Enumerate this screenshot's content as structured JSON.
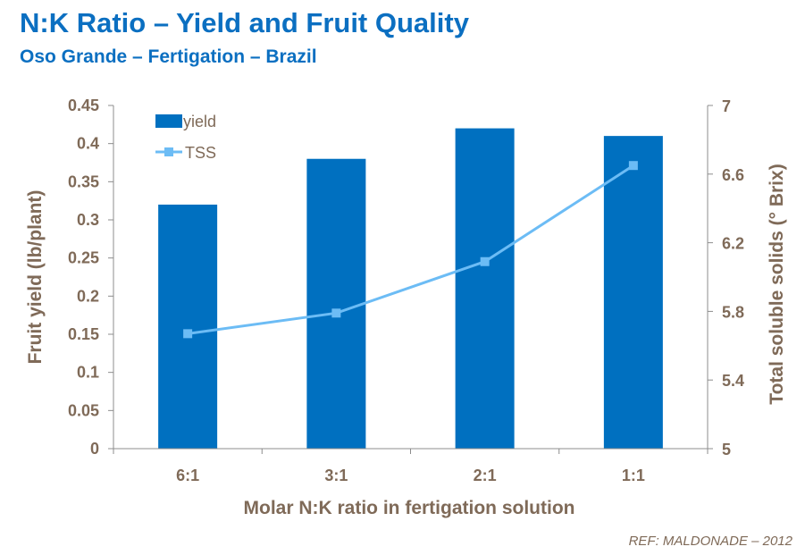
{
  "header": {
    "title": "N:K Ratio – Yield and Fruit Quality",
    "subtitle": "Oso Grande – Fertigation – Brazil"
  },
  "reference": "REF: MALDONADE – 2012",
  "colors": {
    "title": "#0b6fc1",
    "bar": "#0070c0",
    "line": "#6cbcf5",
    "axis_text": "#7f6a58",
    "axis_line": "#8c8c8c"
  },
  "chart_data": {
    "type": "bar",
    "categories": [
      "6:1",
      "3:1",
      "2:1",
      "1:1"
    ],
    "xlabel": "Molar N:K ratio in fertigation solution",
    "ylabel": "Fruit yield (lb/plant)",
    "y2label": "Total soluble solids (° Brix)",
    "ylim": [
      0,
      0.45
    ],
    "y2lim": [
      5,
      7
    ],
    "yticks": [
      "0",
      "0.05",
      "0.1",
      "0.15",
      "0.2",
      "0.25",
      "0.3",
      "0.35",
      "0.4",
      "0.45"
    ],
    "y2ticks": [
      "5",
      "5.4",
      "5.8",
      "6.2",
      "6.6",
      "7"
    ],
    "series": [
      {
        "name": "yield",
        "type": "bar",
        "axis": "left",
        "values": [
          0.32,
          0.38,
          0.42,
          0.41
        ]
      },
      {
        "name": "TSS",
        "type": "line",
        "axis": "right",
        "values": [
          5.67,
          5.79,
          6.09,
          6.65
        ]
      }
    ],
    "legend_position": "top-left",
    "grid": false
  }
}
